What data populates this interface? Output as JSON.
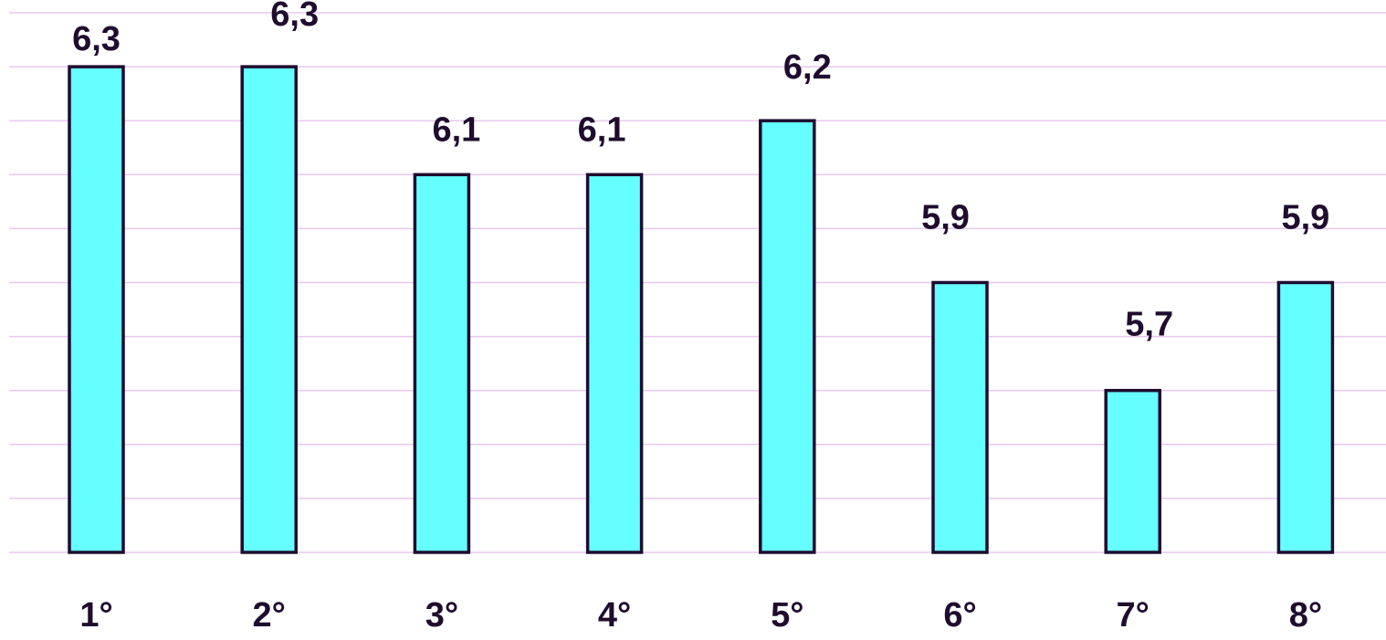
{
  "chart_data": {
    "type": "bar",
    "categories": [
      "1°",
      "2°",
      "3°",
      "4°",
      "5°",
      "6°",
      "7°",
      "8°"
    ],
    "values": [
      6.3,
      6.3,
      6.1,
      6.1,
      6.2,
      5.9,
      5.7,
      5.9
    ],
    "value_labels": [
      "6,3",
      "6,3",
      "6,1",
      "6,1",
      "6,2",
      "5,9",
      "5,7",
      "5,9"
    ],
    "ylim": [
      5.4,
      6.4
    ],
    "grid": true,
    "grid_step": 0.1,
    "title": "",
    "xlabel": "",
    "ylabel": "",
    "colors": {
      "bar_fill": "#66ffff",
      "bar_stroke": "#1f0c2f",
      "grid": "#e9c8ee",
      "text": "#1f0c2f"
    }
  }
}
